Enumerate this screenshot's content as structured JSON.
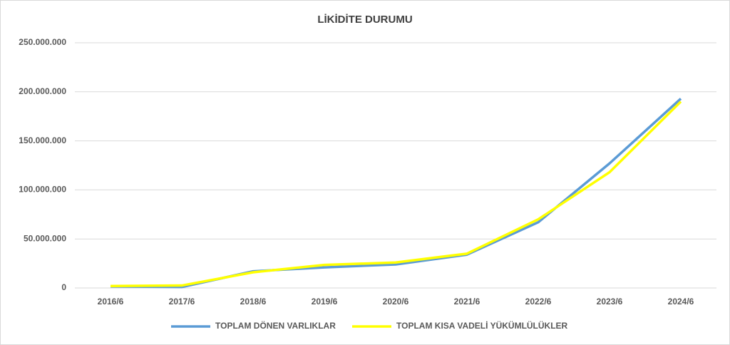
{
  "chart_data": {
    "type": "line",
    "title": "LİKİDİTE DURUMU",
    "categories": [
      "2016/6",
      "2017/6",
      "2018/6",
      "2019/6",
      "2020/6",
      "2021/6",
      "2022/6",
      "2023/6",
      "2024/6"
    ],
    "series": [
      {
        "name": "TOPLAM DÖNEN VARLIKLAR",
        "color": "#5b9bd5",
        "values": [
          1500000,
          1000000,
          17000000,
          21000000,
          24000000,
          34000000,
          67000000,
          127000000,
          193000000
        ]
      },
      {
        "name": "TOPLAM KISA VADELİ YÜKÜMLÜLÜKLER",
        "color": "#ffff00",
        "values": [
          2000000,
          2500000,
          16000000,
          23500000,
          26000000,
          35000000,
          70000000,
          118000000,
          190000000
        ]
      }
    ],
    "ylim": [
      0,
      250000000
    ],
    "yticks": [
      0,
      {
        "value": 50000000,
        "label": "50.000.000"
      },
      {
        "value": 100000000,
        "label": "100.000.000"
      },
      {
        "value": 150000000,
        "label": "150.000.000"
      },
      {
        "value": 200000000,
        "label": "200.000.000"
      },
      {
        "value": 250000000,
        "label": "250.000.000"
      }
    ],
    "grid": true,
    "legend": "bottom"
  }
}
